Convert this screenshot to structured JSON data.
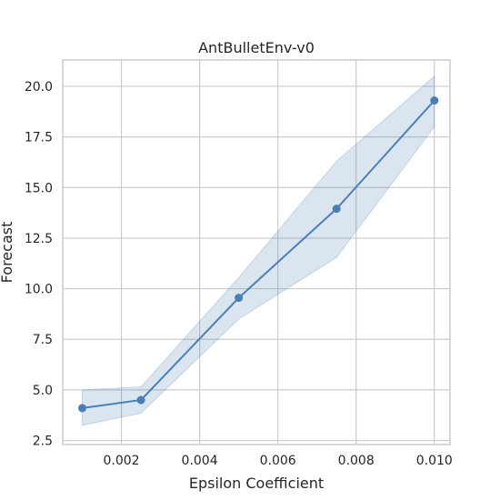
{
  "chart_data": {
    "type": "line",
    "title": "AntBulletEnv-v0",
    "xlabel": "Epsilon Coefficient",
    "ylabel": "Forecast",
    "xlim": [
      0.0005,
      0.0104
    ],
    "ylim": [
      2.3,
      21.3
    ],
    "xticks": [
      0.002,
      0.004,
      0.006,
      0.008,
      0.01
    ],
    "xtick_labels": [
      "0.002",
      "0.004",
      "0.006",
      "0.008",
      "0.010"
    ],
    "yticks": [
      2.5,
      5.0,
      7.5,
      10.0,
      12.5,
      15.0,
      17.5,
      20.0
    ],
    "ytick_labels": [
      "2.5",
      "5.0",
      "7.5",
      "10.0",
      "12.5",
      "15.0",
      "17.5",
      "20.0"
    ],
    "grid": true,
    "series": [
      {
        "x": [
          0.001,
          0.0025,
          0.005,
          0.0075,
          0.01
        ],
        "y": [
          4.1,
          4.5,
          9.55,
          13.95,
          19.3
        ],
        "lower": [
          3.25,
          3.85,
          8.5,
          11.55,
          18.0
        ],
        "upper": [
          5.0,
          5.15,
          10.55,
          16.3,
          20.5
        ],
        "color": "#4a7fb5",
        "band_color": "#4a7fb5",
        "band_opacity": 0.2
      }
    ]
  }
}
